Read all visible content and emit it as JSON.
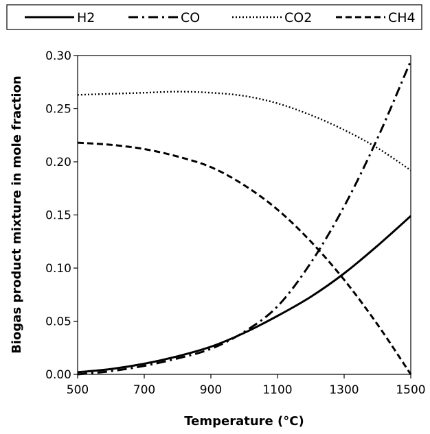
{
  "chart_data": {
    "type": "line",
    "title": "",
    "xlabel": "Temperature (°C)",
    "ylabel": "Biogas product mixture in mole fraction",
    "xlim": [
      500,
      1500
    ],
    "ylim": [
      0,
      0.3
    ],
    "xticks": [
      "500",
      "700",
      "900",
      "1100",
      "1300",
      "1500"
    ],
    "yticks": [
      "0.00",
      "0.05",
      "0.10",
      "0.15",
      "0.20",
      "0.25",
      "0.30"
    ],
    "grid": false,
    "legend_position": "top",
    "series": [
      {
        "name": "H2",
        "style": "solid",
        "x": [
          500,
          600,
          700,
          800,
          900,
          1000,
          1100,
          1200,
          1300,
          1400,
          1500
        ],
        "y": [
          0.002,
          0.005,
          0.01,
          0.017,
          0.026,
          0.039,
          0.055,
          0.073,
          0.095,
          0.121,
          0.149
        ]
      },
      {
        "name": "CO",
        "style": "dash-dot",
        "x": [
          500,
          600,
          700,
          800,
          900,
          1000,
          1100,
          1200,
          1300,
          1400,
          1500
        ],
        "y": [
          0.0,
          0.003,
          0.008,
          0.015,
          0.024,
          0.04,
          0.064,
          0.105,
          0.158,
          0.222,
          0.295
        ]
      },
      {
        "name": "CO2",
        "style": "dotted",
        "x": [
          500,
          600,
          700,
          800,
          900,
          1000,
          1100,
          1200,
          1300,
          1400,
          1500
        ],
        "y": [
          0.263,
          0.264,
          0.265,
          0.266,
          0.265,
          0.262,
          0.255,
          0.244,
          0.23,
          0.213,
          0.192
        ]
      },
      {
        "name": "CH4",
        "style": "dashed",
        "x": [
          500,
          600,
          700,
          800,
          900,
          1000,
          1100,
          1200,
          1300,
          1400,
          1500
        ],
        "y": [
          0.218,
          0.216,
          0.212,
          0.205,
          0.195,
          0.178,
          0.155,
          0.125,
          0.089,
          0.047,
          0.0
        ]
      }
    ]
  }
}
